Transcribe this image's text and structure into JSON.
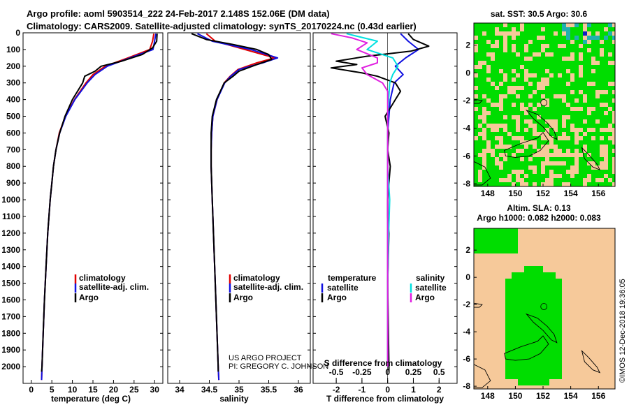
{
  "header": {
    "title_line1": "Argo profile: aoml 5903514_222 24-Feb-2017 2.148S 152.06E (DM data)",
    "title_line2": "Climatology: CARS2009. Satellite-adjusted climatology: synTS_20170224.nc (0.43d earlier)"
  },
  "colors": {
    "climatology": "#e00000",
    "satellite": "#1010e0",
    "argo": "#000000",
    "salinity_sat": "#00e0e0",
    "salinity_argo": "#e020e0",
    "land": "#f6c99a",
    "ocean_green": "#00dd00"
  },
  "legend": {
    "climatology": "climatology",
    "satellite_adj": "satellite-adj. clim.",
    "argo": "Argo",
    "temperature": "temperature",
    "salinity": "salinity",
    "satellite": "satellite"
  },
  "credits": {
    "project": "US ARGO PROJECT",
    "pi": "PI: GREGORY C. JOHNSON",
    "imos": "©IMOS 12-Dec-2018 19:36:05"
  },
  "maps": {
    "sst_title": "sat. SST: 30.5 Argo: 30.6",
    "sla_title_line1": "Altim. SLA: 0.13",
    "sla_title_line2": "Argo h1000: 0.082 h2000: 0.083",
    "lon_ticks": [
      "148",
      "150",
      "152",
      "154",
      "156"
    ],
    "lat_ticks": [
      "2",
      "0",
      "-2",
      "-4",
      "-6",
      "-8"
    ],
    "float_position": {
      "lon": 152.06,
      "lat": -2.148
    }
  },
  "chart_data": [
    {
      "type": "line",
      "name": "temperature",
      "xlabel": "temperature (deg C)",
      "ylabel": "",
      "xlim": [
        -2,
        32
      ],
      "ylim": [
        2100,
        0
      ],
      "xticks": [
        0,
        5,
        10,
        15,
        20,
        25,
        30
      ],
      "yticks": [
        0,
        100,
        200,
        300,
        400,
        500,
        600,
        700,
        800,
        900,
        1000,
        1100,
        1200,
        1300,
        1400,
        1500,
        1600,
        1700,
        1800,
        1900,
        2000
      ],
      "series": [
        {
          "name": "climatology",
          "depth": [
            5,
            50,
            100,
            150,
            200,
            250,
            300,
            400,
            500,
            600,
            700,
            800,
            900,
            1000,
            1200,
            1400,
            1600,
            1800,
            2000,
            2080
          ],
          "values": [
            29.8,
            29.5,
            28.8,
            23.5,
            18,
            15,
            13.3,
            10.5,
            8.3,
            6.8,
            6,
            5.4,
            5,
            4.6,
            4,
            3.6,
            3.2,
            2.9,
            2.6,
            2.5
          ]
        },
        {
          "name": "satellite-adj. clim.",
          "depth": [
            5,
            50,
            100,
            150,
            200,
            250,
            300,
            400,
            500,
            600,
            700,
            800,
            900,
            1000,
            1200,
            1400,
            1600,
            1800,
            2000,
            2080
          ],
          "values": [
            30.3,
            30,
            29.6,
            24,
            18.5,
            15.5,
            13.6,
            10.6,
            8.4,
            6.9,
            6,
            5.4,
            5,
            4.6,
            4,
            3.6,
            3.2,
            2.9,
            2.6,
            2.5
          ]
        },
        {
          "name": "Argo",
          "depth": [
            5,
            50,
            90,
            130,
            170,
            200,
            230,
            260,
            300,
            400,
            500,
            600,
            700,
            800,
            900,
            1000,
            1200,
            1400,
            1600,
            1800,
            2000,
            2030
          ],
          "values": [
            30.6,
            30.5,
            29.5,
            27,
            22,
            17,
            15.5,
            13,
            12.5,
            10,
            8.2,
            6.9,
            6,
            5.4,
            5,
            4.6,
            4,
            3.6,
            3.2,
            2.9,
            2.6,
            2.5
          ]
        }
      ]
    },
    {
      "type": "line",
      "name": "salinity",
      "xlabel": "salinity",
      "ylabel": "",
      "xlim": [
        33.8,
        36.2
      ],
      "ylim": [
        2100,
        0
      ],
      "xticks": [
        34,
        34.5,
        35,
        35.5,
        36
      ],
      "series": [
        {
          "name": "climatology",
          "depth": [
            5,
            50,
            100,
            150,
            180,
            220,
            260,
            300,
            400,
            500,
            600,
            700,
            800,
            1000,
            1500,
            2000,
            2080
          ],
          "values": [
            34.45,
            34.6,
            35.1,
            35.6,
            35.3,
            34.98,
            34.85,
            34.75,
            34.63,
            34.56,
            34.54,
            34.53,
            34.53,
            34.55,
            34.6,
            34.65,
            34.66
          ]
        },
        {
          "name": "satellite-adj. clim.",
          "depth": [
            5,
            50,
            100,
            150,
            180,
            220,
            260,
            300,
            400,
            500,
            600,
            700,
            800,
            1000,
            1500,
            2000,
            2080
          ],
          "values": [
            34.3,
            34.55,
            35.2,
            35.65,
            35.4,
            35.0,
            34.86,
            34.76,
            34.63,
            34.56,
            34.54,
            34.53,
            34.53,
            34.55,
            34.6,
            34.65,
            34.66
          ]
        },
        {
          "name": "Argo",
          "depth": [
            5,
            40,
            70,
            100,
            130,
            160,
            190,
            230,
            260,
            300,
            400,
            500,
            600,
            700,
            800,
            1000,
            1500,
            2000,
            2030
          ],
          "values": [
            34.2,
            34.45,
            34.9,
            35.3,
            35.5,
            35.55,
            35.3,
            35.0,
            34.9,
            34.75,
            34.62,
            34.55,
            34.53,
            34.53,
            34.53,
            34.55,
            34.6,
            34.65,
            34.65
          ]
        }
      ]
    },
    {
      "type": "line",
      "name": "difference",
      "xlabel": "T difference from climatology",
      "x2label": "S difference from climatology",
      "xlim": [
        -2.9,
        2.7
      ],
      "ylim": [
        2100,
        0
      ],
      "xticks": [
        -2,
        -1,
        0,
        1,
        2
      ],
      "x2ticks": [
        -0.5,
        -0.25,
        0,
        0.25,
        0.5
      ],
      "x2ticklabels": [
        "-0.5",
        "-0.25",
        "0",
        "0.25",
        "0.5"
      ],
      "series": [
        {
          "name": "temperature satellite",
          "depth": [
            5,
            50,
            100,
            150,
            200,
            250,
            300,
            400,
            500,
            600,
            800,
            1000,
            1500,
            2000
          ],
          "values": [
            0.5,
            0.8,
            1.2,
            0.7,
            0.3,
            0.6,
            0.25,
            0.1,
            0.05,
            0.0,
            0.0,
            0.0,
            0.0,
            0.0
          ]
        },
        {
          "name": "temperature Argo",
          "depth": [
            5,
            40,
            80,
            110,
            140,
            170,
            190,
            210,
            240,
            260,
            300,
            350,
            400,
            450,
            500,
            600,
            700,
            800,
            900,
            1000,
            1100,
            1200,
            1500,
            2000,
            2030
          ],
          "values": [
            0.8,
            1.0,
            1.6,
            0.9,
            -0.8,
            -2.0,
            -1.2,
            -2.2,
            -1.0,
            -0.4,
            0.3,
            0.5,
            0.3,
            0.1,
            -0.1,
            0.05,
            0.0,
            0.1,
            0.05,
            0.0,
            0.0,
            0.05,
            0.0,
            0.05,
            0.05
          ]
        },
        {
          "name": "salinity satellite",
          "depth": [
            5,
            50,
            100,
            150,
            200,
            250,
            300,
            400,
            500,
            800,
            1000,
            1200,
            1500,
            2000
          ],
          "values": [
            -0.4,
            -0.1,
            -0.2,
            0.05,
            0.1,
            0.05,
            0.02,
            0.01,
            0.0,
            0.0,
            0.02,
            0.01,
            0.0,
            0.0
          ]
        },
        {
          "name": "salinity Argo",
          "depth": [
            5,
            30,
            60,
            100,
            150,
            180,
            210,
            250,
            300,
            350,
            400,
            500,
            800,
            1000,
            1500,
            2000
          ],
          "values": [
            -0.55,
            -0.35,
            -0.2,
            -0.3,
            -0.1,
            -0.1,
            -0.25,
            -0.2,
            -0.05,
            0.0,
            0.0,
            0.0,
            0.0,
            0.0,
            0.0,
            0.0
          ]
        }
      ]
    }
  ]
}
